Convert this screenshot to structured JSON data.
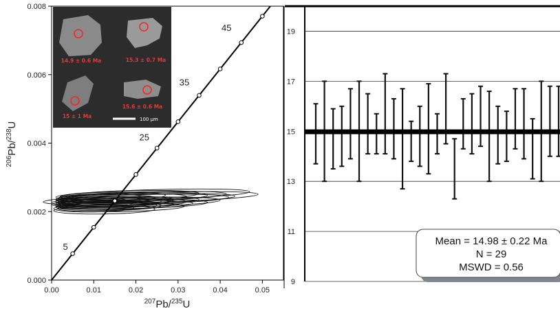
{
  "chart_data": [
    {
      "type": "scatter",
      "subtype": "concordia",
      "xlabel": {
        "base": "Pb",
        "mass_pre": "207",
        "mid": "/",
        "mass_post": "235",
        "tail": "U"
      },
      "ylabel": {
        "base": "Pb",
        "mass_pre": "206",
        "mid": "/",
        "mass_post": "238",
        "tail": "U"
      },
      "xlim": [
        0.0,
        0.055
      ],
      "ylim": [
        0.0,
        0.008
      ],
      "xticks": [
        "0.00",
        "0.01",
        "0.02",
        "0.03",
        "0.04",
        "0.05"
      ],
      "yticks": [
        "0.000",
        "0.002",
        "0.004",
        "0.006",
        "0.008"
      ],
      "concordia_age_labels": [
        "5",
        "25",
        "35",
        "45"
      ],
      "concordia_markers_x": [
        0.005,
        0.01,
        0.015,
        0.02,
        0.025,
        0.03,
        0.035,
        0.04,
        0.045,
        0.05
      ],
      "ellipses": [
        {
          "x": 0.014,
          "y": 0.00215,
          "rx": 0.012,
          "ry": 0.00012,
          "rot": 1.0
        },
        {
          "x": 0.016,
          "y": 0.00225,
          "rx": 0.016,
          "ry": 0.00013,
          "rot": 1.2
        },
        {
          "x": 0.018,
          "y": 0.0023,
          "rx": 0.017,
          "ry": 0.00012,
          "rot": 1.4
        },
        {
          "x": 0.02,
          "y": 0.00235,
          "rx": 0.022,
          "ry": 0.00014,
          "rot": 1.5
        },
        {
          "x": 0.012,
          "y": 0.0022,
          "rx": 0.011,
          "ry": 0.00012,
          "rot": 0.8
        },
        {
          "x": 0.015,
          "y": 0.00218,
          "rx": 0.014,
          "ry": 0.00011,
          "rot": 1.0
        },
        {
          "x": 0.013,
          "y": 0.00228,
          "rx": 0.013,
          "ry": 0.00013,
          "rot": 1.0
        },
        {
          "x": 0.017,
          "y": 0.0024,
          "rx": 0.015,
          "ry": 0.00012,
          "rot": 1.3
        },
        {
          "x": 0.011,
          "y": 0.00232,
          "rx": 0.01,
          "ry": 0.00012,
          "rot": 0.9
        },
        {
          "x": 0.019,
          "y": 0.00242,
          "rx": 0.018,
          "ry": 0.00013,
          "rot": 1.5
        },
        {
          "x": 0.01,
          "y": 0.0021,
          "rx": 0.0095,
          "ry": 0.00011,
          "rot": 0.7
        },
        {
          "x": 0.0145,
          "y": 0.00245,
          "rx": 0.0125,
          "ry": 0.00012,
          "rot": 1.0
        },
        {
          "x": 0.021,
          "y": 0.00228,
          "rx": 0.019,
          "ry": 0.00013,
          "rot": 1.4
        },
        {
          "x": 0.0125,
          "y": 0.00205,
          "rx": 0.012,
          "ry": 0.00012,
          "rot": 0.9
        },
        {
          "x": 0.0175,
          "y": 0.0022,
          "rx": 0.016,
          "ry": 0.00012,
          "rot": 1.2
        },
        {
          "x": 0.0135,
          "y": 0.00238,
          "rx": 0.011,
          "ry": 0.00011,
          "rot": 1.0
        },
        {
          "x": 0.0225,
          "y": 0.00238,
          "rx": 0.021,
          "ry": 0.00013,
          "rot": 1.6
        },
        {
          "x": 0.0105,
          "y": 0.00225,
          "rx": 0.009,
          "ry": 0.00012,
          "rot": 0.8
        },
        {
          "x": 0.0155,
          "y": 0.00232,
          "rx": 0.0135,
          "ry": 0.00012,
          "rot": 1.1
        },
        {
          "x": 0.0195,
          "y": 0.00222,
          "rx": 0.0175,
          "ry": 0.00013,
          "rot": 1.3
        },
        {
          "x": 0.024,
          "y": 0.0025,
          "rx": 0.023,
          "ry": 0.00014,
          "rot": 1.6
        },
        {
          "x": 0.0115,
          "y": 0.0024,
          "rx": 0.01,
          "ry": 0.00012,
          "rot": 0.9
        },
        {
          "x": 0.0165,
          "y": 0.00212,
          "rx": 0.015,
          "ry": 0.00012,
          "rot": 1.1
        },
        {
          "x": 0.025,
          "y": 0.00242,
          "rx": 0.024,
          "ry": 0.00014,
          "rot": 1.7
        },
        {
          "x": 0.013,
          "y": 0.00215,
          "rx": 0.012,
          "ry": 0.00011,
          "rot": 1.0
        },
        {
          "x": 0.0185,
          "y": 0.00248,
          "rx": 0.0165,
          "ry": 0.00013,
          "rot": 1.4
        },
        {
          "x": 0.0095,
          "y": 0.0023,
          "rx": 0.0085,
          "ry": 0.00011,
          "rot": 0.7
        },
        {
          "x": 0.0215,
          "y": 0.00245,
          "rx": 0.02,
          "ry": 0.00013,
          "rot": 1.5
        },
        {
          "x": 0.0148,
          "y": 0.00226,
          "rx": 0.013,
          "ry": 0.00012,
          "rot": 1.1
        }
      ],
      "inset": {
        "grains": [
          {
            "label": "14.9 ± 0.6 Ma"
          },
          {
            "label": "15.3 ± 0.7 Ma"
          },
          {
            "label": "15 ± 1 Ma"
          },
          {
            "label": "15.6 ± 0.6 Ma"
          }
        ],
        "scale_label": "100 µm"
      }
    },
    {
      "type": "bar",
      "subtype": "weighted-mean",
      "ylim": [
        9,
        20
      ],
      "yticks": [
        "9",
        "11",
        "13",
        "15",
        "17",
        "19"
      ],
      "mean": 14.98,
      "intervals": [
        [
          13.7,
          16.1
        ],
        [
          13.0,
          17.0
        ],
        [
          13.5,
          15.9
        ],
        [
          13.6,
          16.0
        ],
        [
          13.9,
          16.7
        ],
        [
          13.0,
          17.0
        ],
        [
          14.1,
          16.5
        ],
        [
          14.1,
          15.7
        ],
        [
          14.1,
          17.3
        ],
        [
          13.9,
          16.3
        ],
        [
          12.7,
          16.7
        ],
        [
          13.8,
          15.4
        ],
        [
          13.6,
          16.0
        ],
        [
          13.3,
          16.9
        ],
        [
          14.1,
          15.7
        ],
        [
          14.5,
          17.3
        ],
        [
          12.3,
          14.7
        ],
        [
          14.3,
          16.3
        ],
        [
          14.1,
          16.5
        ],
        [
          14.4,
          16.8
        ],
        [
          13.0,
          16.6
        ],
        [
          13.7,
          16.0
        ],
        [
          13.8,
          15.8
        ],
        [
          14.3,
          16.7
        ],
        [
          13.9,
          16.7
        ],
        [
          13.1,
          15.5
        ],
        [
          13.0,
          17.0
        ],
        [
          14.0,
          16.8
        ],
        [
          14.0,
          16.8
        ]
      ],
      "stats": {
        "mean_line": "Mean = 14.98 ± 0.22 Ma",
        "n_line": "N = 29",
        "mswd_line": "MSWD = 0.56"
      }
    }
  ]
}
